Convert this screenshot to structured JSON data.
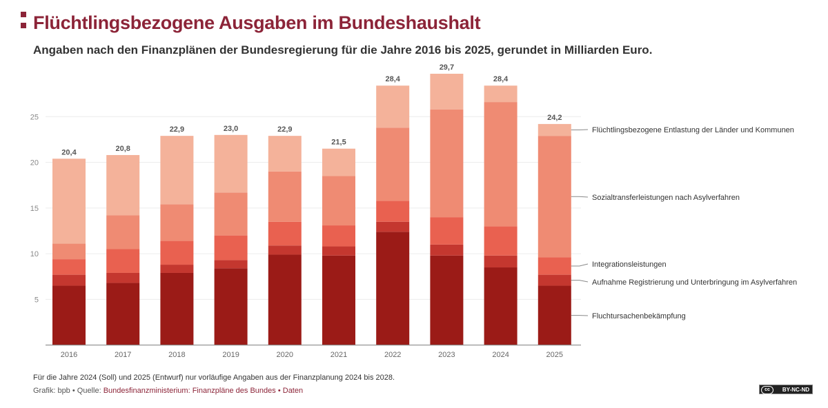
{
  "header": {
    "title": "Flüchtlingsbezogene Ausgaben im Bundeshaushalt",
    "subtitle": "Angaben nach den Finanzplänen der Bundesregierung für die Jahre 2016 bis 2025, gerundet in Milliarden Euro."
  },
  "footer": {
    "note": "Für die Jahre 2024 (Soll) und 2025 (Entwurf) nur vorläufige Angaben aus der Finanzplanung 2024 bis 2028.",
    "credit": "Grafik: bpb • Quelle: ",
    "source_link": "Bundesfinanzministerium: Finanzpläne des Bundes",
    "separator": " • ",
    "data_link": "Daten",
    "license": "BY-NC-ND",
    "license_icon": "cc"
  },
  "colors": {
    "title": "#8c2438"
  },
  "chart_data": {
    "type": "bar",
    "stacked": true,
    "categories": [
      "2016",
      "2017",
      "2018",
      "2019",
      "2020",
      "2021",
      "2022",
      "2023",
      "2024",
      "2025"
    ],
    "totals": [
      "20,4",
      "20,8",
      "22,9",
      "23,0",
      "22,9",
      "21,5",
      "28,4",
      "29,7",
      "28,4",
      "24,2"
    ],
    "series": [
      {
        "name": "Fluchtursachenbekämpfung",
        "color": "#9b1b17",
        "values": [
          6.5,
          6.8,
          7.9,
          8.4,
          9.9,
          9.8,
          12.4,
          9.8,
          8.5,
          6.5
        ]
      },
      {
        "name": "Aufnahme Registrierung und Unterbringung im Asylverfahren",
        "color": "#c4372f",
        "values": [
          1.2,
          1.1,
          0.9,
          0.9,
          1.0,
          1.0,
          1.1,
          1.2,
          1.3,
          1.2
        ]
      },
      {
        "name": "Integrationsleistungen",
        "color": "#e96150",
        "values": [
          1.7,
          2.6,
          2.6,
          2.7,
          2.6,
          2.3,
          2.3,
          3.0,
          3.2,
          1.9
        ]
      },
      {
        "name": "Sozialtransferleistungen nach Asylverfahren",
        "color": "#ef8b73",
        "values": [
          1.7,
          3.7,
          4.0,
          4.7,
          5.5,
          5.4,
          8.0,
          11.8,
          13.6,
          13.3
        ]
      },
      {
        "name": "Flüchtlingsbezogene Entlastung der Länder und Kommunen",
        "color": "#f4b29a",
        "values": [
          9.3,
          6.6,
          7.5,
          6.3,
          3.9,
          3.0,
          4.6,
          3.9,
          1.8,
          1.3
        ]
      }
    ],
    "yticks": [
      "5",
      "10",
      "15",
      "20",
      "25"
    ],
    "ylim": [
      0,
      30
    ],
    "grid": true,
    "legend": "right, direct labels"
  }
}
